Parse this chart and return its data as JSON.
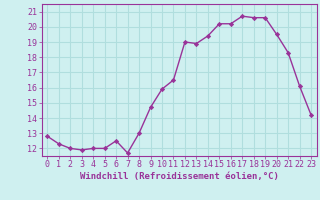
{
  "x": [
    0,
    1,
    2,
    3,
    4,
    5,
    6,
    7,
    8,
    9,
    10,
    11,
    12,
    13,
    14,
    15,
    16,
    17,
    18,
    19,
    20,
    21,
    22,
    23
  ],
  "y": [
    12.8,
    12.3,
    12.0,
    11.9,
    12.0,
    12.0,
    12.5,
    11.7,
    13.0,
    14.7,
    15.9,
    16.5,
    19.0,
    18.9,
    19.4,
    20.2,
    20.2,
    20.7,
    20.6,
    20.6,
    19.5,
    18.3,
    16.1,
    14.2
  ],
  "line_color": "#993399",
  "marker": "D",
  "marker_size": 2.2,
  "line_width": 1.0,
  "bg_color": "#cff0f0",
  "grid_color": "#b0dede",
  "xlabel": "Windchill (Refroidissement éolien,°C)",
  "xlabel_color": "#993399",
  "xlabel_fontsize": 6.5,
  "tick_color": "#993399",
  "tick_fontsize": 6.0,
  "ylim": [
    11.5,
    21.5
  ],
  "yticks": [
    12,
    13,
    14,
    15,
    16,
    17,
    18,
    19,
    20,
    21
  ],
  "xticks": [
    0,
    1,
    2,
    3,
    4,
    5,
    6,
    7,
    8,
    9,
    10,
    11,
    12,
    13,
    14,
    15,
    16,
    17,
    18,
    19,
    20,
    21,
    22,
    23
  ],
  "xlim": [
    -0.5,
    23.5
  ]
}
